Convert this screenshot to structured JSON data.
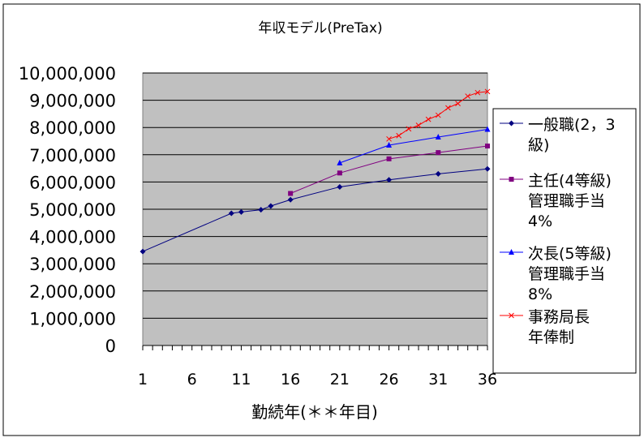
{
  "chart_data": {
    "type": "line",
    "title": "年収モデル(PreTax)",
    "xlabel": "勤続年(＊＊年目)",
    "ylabel": "",
    "xlim": [
      1,
      36
    ],
    "ylim": [
      0,
      10000000
    ],
    "x_ticks": [
      "1",
      "6",
      "11",
      "16",
      "21",
      "26",
      "31",
      "36"
    ],
    "y_ticks": [
      "0",
      "1,000,000",
      "2,000,000",
      "3,000,000",
      "4,000,000",
      "5,000,000",
      "6,000,000",
      "7,000,000",
      "8,000,000",
      "9,000,000",
      "10,000,000"
    ],
    "grid": "horizontal",
    "legend_position": "right",
    "plot_background": "#c0c0c0",
    "series": [
      {
        "name": "一般職(2,3級)",
        "legend_lines": [
          "一般職(2，3",
          "級)"
        ],
        "color": "#000080",
        "marker": "diamond",
        "points": [
          [
            1,
            3450000
          ],
          [
            10,
            4850000
          ],
          [
            11,
            4900000
          ],
          [
            13,
            4980000
          ],
          [
            14,
            5120000
          ],
          [
            16,
            5350000
          ],
          [
            21,
            5820000
          ],
          [
            26,
            6080000
          ],
          [
            31,
            6300000
          ],
          [
            36,
            6480000
          ]
        ]
      },
      {
        "name": "主任(4等級)管理職手当4%",
        "legend_lines": [
          "主任(4等級)",
          "管理職手当",
          "4%"
        ],
        "color": "#800080",
        "marker": "square",
        "points": [
          [
            16,
            5580000
          ],
          [
            21,
            6330000
          ],
          [
            26,
            6850000
          ],
          [
            31,
            7080000
          ],
          [
            36,
            7320000
          ]
        ]
      },
      {
        "name": "次長(5等級)管理職手当8%",
        "legend_lines": [
          "次長(5等級)",
          "管理職手当",
          "8%"
        ],
        "color": "#0000ff",
        "marker": "triangle",
        "points": [
          [
            21,
            6700000
          ],
          [
            26,
            7350000
          ],
          [
            31,
            7650000
          ],
          [
            36,
            7930000
          ]
        ]
      },
      {
        "name": "事務局長年俸制",
        "legend_lines": [
          "事務局長",
          "年俸制"
        ],
        "color": "#ff0000",
        "marker": "x",
        "points": [
          [
            26,
            7580000
          ],
          [
            27,
            7700000
          ],
          [
            28,
            7950000
          ],
          [
            29,
            8080000
          ],
          [
            30,
            8300000
          ],
          [
            31,
            8450000
          ],
          [
            32,
            8720000
          ],
          [
            33,
            8880000
          ],
          [
            34,
            9150000
          ],
          [
            35,
            9280000
          ],
          [
            36,
            9320000
          ]
        ]
      }
    ]
  }
}
